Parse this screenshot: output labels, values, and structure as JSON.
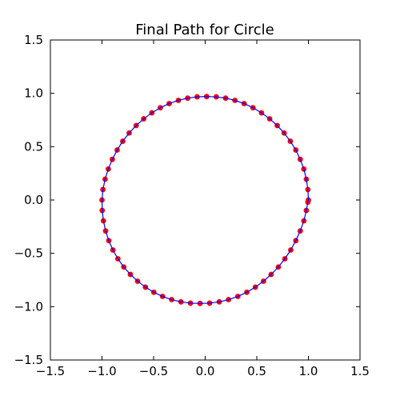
{
  "chart_data": {
    "type": "scatter",
    "title": "Final Path for Circle",
    "xlabel": "",
    "ylabel": "",
    "xlim": [
      -1.5,
      1.5
    ],
    "ylim": [
      -1.5,
      1.5
    ],
    "xticks": [
      "−1.5",
      "−1.0",
      "−0.5",
      "0.0",
      "0.5",
      "1.0",
      "1.5"
    ],
    "yticks": [
      "−1.5",
      "−1.0",
      "−0.5",
      "0.0",
      "0.5",
      "1.0",
      "1.5"
    ],
    "xtick_values": [
      -1.5,
      -1.0,
      -0.5,
      0.0,
      0.5,
      1.0,
      1.5
    ],
    "ytick_values": [
      -1.5,
      -1.0,
      -0.5,
      0.0,
      0.5,
      1.0,
      1.5
    ],
    "grid": false,
    "series": [
      {
        "marker": "circle",
        "color": "#ff0000",
        "x": [
          1.0,
          0.995,
          0.98,
          0.956,
          0.921,
          0.878,
          0.825,
          0.765,
          0.698,
          0.625,
          0.546,
          0.463,
          0.377,
          0.288,
          0.198,
          0.107,
          0.014,
          -0.078,
          -0.17,
          -0.26,
          -0.349,
          -0.435,
          -0.517,
          -0.596,
          -0.669,
          -0.737,
          -0.799,
          -0.853,
          -0.9,
          -0.939,
          -0.97,
          -0.991,
          -1.0,
          -0.998,
          -0.986,
          -0.965,
          -0.934,
          -0.894,
          -0.846,
          -0.789,
          -0.725,
          -0.655,
          -0.579,
          -0.498,
          -0.413,
          -0.325,
          -0.235,
          -0.143,
          -0.05,
          0.043,
          0.136,
          0.226,
          0.316,
          0.403,
          0.486,
          0.565,
          0.639,
          0.709,
          0.772,
          0.829,
          0.878,
          0.921,
          0.956,
          0.98,
          0.995
        ],
        "y": [
          0.0,
          0.098,
          0.195,
          0.29,
          0.381,
          0.469,
          0.551,
          0.628,
          0.698,
          0.761,
          0.817,
          0.865,
          0.904,
          0.934,
          0.955,
          0.967,
          0.97,
          0.967,
          0.955,
          0.934,
          0.904,
          0.865,
          0.817,
          0.761,
          0.698,
          0.628,
          0.551,
          0.469,
          0.381,
          0.29,
          0.195,
          0.098,
          0.0,
          -0.098,
          -0.195,
          -0.29,
          -0.381,
          -0.469,
          -0.551,
          -0.628,
          -0.698,
          -0.761,
          -0.817,
          -0.865,
          -0.904,
          -0.934,
          -0.955,
          -0.967,
          -0.97,
          -0.967,
          -0.955,
          -0.934,
          -0.904,
          -0.865,
          -0.817,
          -0.761,
          -0.698,
          -0.628,
          -0.551,
          -0.469,
          -0.381,
          -0.29,
          -0.195,
          -0.098,
          -0.02
        ]
      },
      {
        "marker": "line",
        "color": "#0000ff"
      }
    ]
  }
}
